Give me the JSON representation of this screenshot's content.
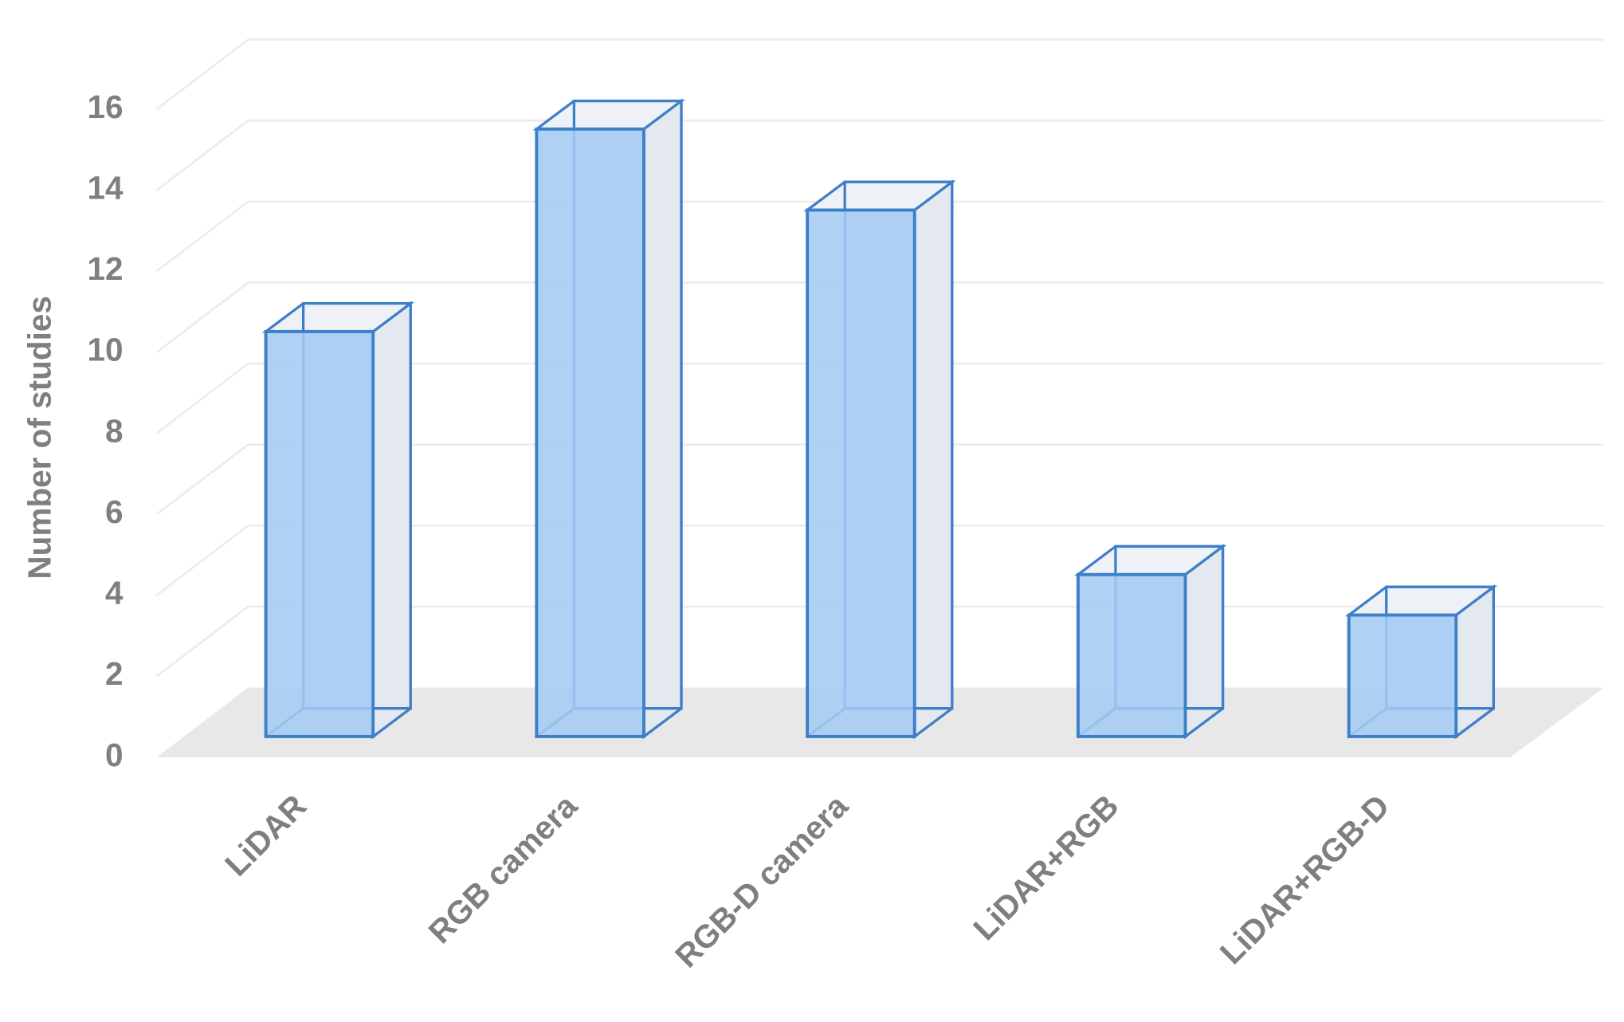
{
  "chart_data": {
    "type": "bar3d",
    "y_axis_label": "Number of studies",
    "categories": [
      "LiDAR",
      "RGB camera",
      "RGB-D camera",
      "LiDAR+RGB",
      "LiDAR+RGB-D"
    ],
    "values": [
      10,
      15,
      13,
      4,
      3
    ],
    "color": "#a3cbf2",
    "ylim": [
      0,
      16
    ],
    "yticks": [
      0,
      2,
      4,
      6,
      8,
      10,
      12,
      14,
      16
    ],
    "grid": true
  }
}
